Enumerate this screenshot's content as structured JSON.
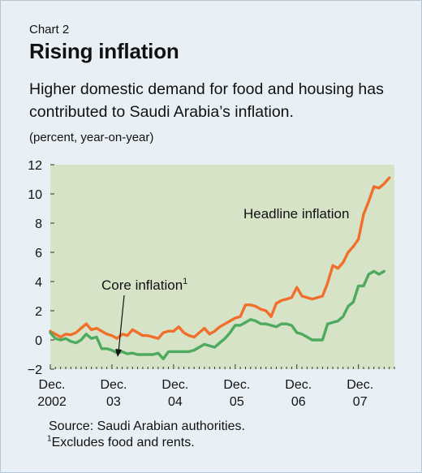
{
  "header": {
    "label": "Chart 2",
    "title": "Rising inflation",
    "subtitle": "Higher domestic demand for food and housing has contributed to Saudi Arabia’s inflation.",
    "units": "(percent, year-on-year)"
  },
  "footer": {
    "source": "Source: Saudi Arabian authorities.",
    "footnote_mark": "1",
    "footnote_text": "Excludes food and rents."
  },
  "colors": {
    "plot_bg": "#d6e3c7",
    "headline": "#f26f2b",
    "core": "#4daa5e"
  },
  "chart_data": {
    "type": "line",
    "title": "Rising inflation",
    "ylim": [
      -2,
      12
    ],
    "yticks": [
      -2,
      0,
      2,
      4,
      6,
      8,
      10,
      12
    ],
    "ytick_labels": [
      "−2",
      "0",
      "2",
      "4",
      "6",
      "8",
      "10",
      "12"
    ],
    "xlim": [
      0,
      67
    ],
    "xticks": [
      {
        "x": 0,
        "top": "Dec.",
        "bottom": "2002"
      },
      {
        "x": 12,
        "top": "Dec.",
        "bottom": "03"
      },
      {
        "x": 24,
        "top": "Dec.",
        "bottom": "04"
      },
      {
        "x": 36,
        "top": "Dec.",
        "bottom": "05"
      },
      {
        "x": 48,
        "top": "Dec.",
        "bottom": "06"
      },
      {
        "x": 60,
        "top": "Dec.",
        "bottom": "07"
      }
    ],
    "grid": false,
    "series": [
      {
        "name": "Headline inflation",
        "label_part": "Headline inflation",
        "values": [
          0.6,
          0.4,
          0.2,
          0.4,
          0.35,
          0.5,
          0.8,
          1.1,
          0.7,
          0.8,
          0.6,
          0.4,
          0.3,
          0.1,
          0.4,
          0.3,
          0.7,
          0.5,
          0.3,
          0.3,
          0.2,
          0.1,
          0.5,
          0.6,
          0.6,
          0.9,
          0.5,
          0.3,
          0.2,
          0.5,
          0.8,
          0.4,
          0.6,
          0.9,
          1.1,
          1.3,
          1.5,
          1.6,
          2.4,
          2.4,
          2.3,
          2.1,
          2.0,
          1.6,
          2.5,
          2.7,
          2.8,
          2.9,
          3.6,
          3.0,
          2.9,
          2.8,
          2.9,
          3.0,
          3.9,
          5.1,
          4.9,
          5.3,
          6.0,
          6.4,
          6.9,
          8.6,
          9.5,
          10.5,
          10.4,
          10.7,
          11.1
        ]
      },
      {
        "name": "Core inflation",
        "label_part": "Core inflation",
        "label_sup": "1",
        "values": [
          0.5,
          0.1,
          0.0,
          0.1,
          -0.1,
          -0.2,
          0.0,
          0.4,
          0.1,
          0.2,
          -0.6,
          -0.6,
          -0.7,
          -0.9,
          -0.8,
          -0.95,
          -0.9,
          -1.0,
          -1.0,
          -1.0,
          -1.0,
          -0.9,
          -1.3,
          -0.8,
          -0.8,
          -0.8,
          -0.8,
          -0.8,
          -0.7,
          -0.5,
          -0.3,
          -0.4,
          -0.5,
          -0.2,
          0.1,
          0.5,
          1.0,
          1.0,
          1.2,
          1.4,
          1.3,
          1.1,
          1.1,
          1.0,
          0.9,
          1.1,
          1.1,
          1.0,
          0.5,
          0.4,
          0.2,
          0.0,
          0.0,
          0.0,
          1.1,
          1.2,
          1.3,
          1.6,
          2.3,
          2.6,
          3.7,
          3.7,
          4.5,
          4.7,
          4.5,
          4.7
        ]
      }
    ]
  }
}
